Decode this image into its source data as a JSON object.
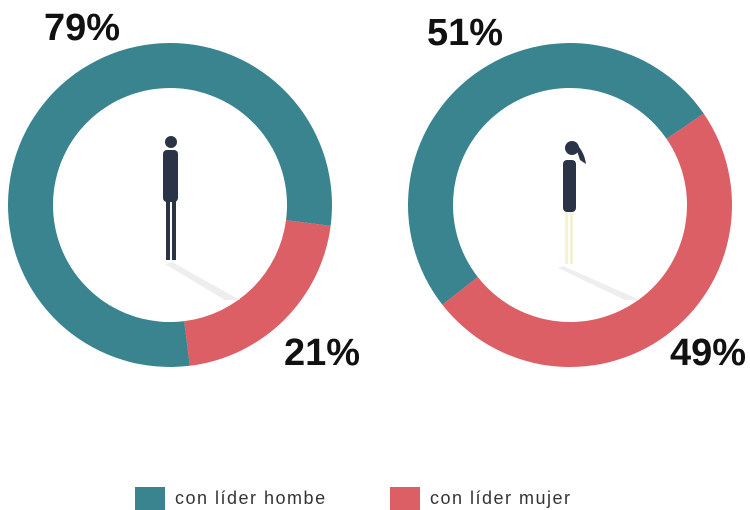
{
  "legend": [
    {
      "name": "con líder hombe",
      "color": "#39848f"
    },
    {
      "name": "con líder mujer",
      "color": "#dc5f66"
    }
  ],
  "chart_data": [
    {
      "type": "pie",
      "values": [
        79,
        21
      ],
      "value_labels": [
        "79%",
        "21%"
      ]
    },
    {
      "type": "pie",
      "values": [
        51,
        49
      ],
      "value_labels": [
        "51%",
        "49%"
      ]
    }
  ]
}
